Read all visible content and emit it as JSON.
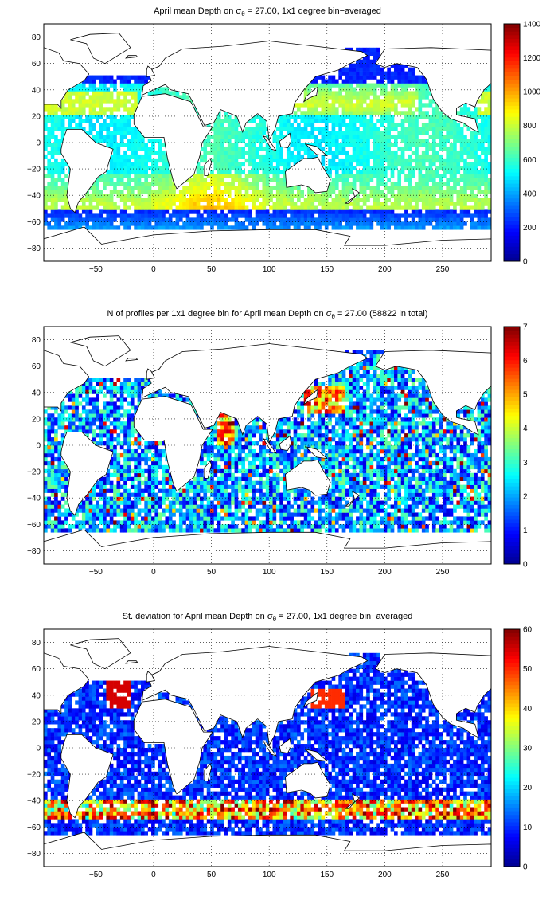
{
  "colormap": [
    "#00008f",
    "#0000ff",
    "#0080ff",
    "#00ffff",
    "#80ff80",
    "#ffff00",
    "#ff8000",
    "#ff0000",
    "#800000"
  ],
  "map_fill": "#ffffff",
  "coastline_color": "#000000",
  "chart_data": [
    {
      "type": "heatmap",
      "title_prefix": "April mean Depth on σ",
      "title_sub": "θ",
      "title_suffix": " = 27.00, 1x1 degree bin−averaged",
      "xlim": [
        -95,
        292
      ],
      "ylim": [
        -90,
        90
      ],
      "xticks": [
        -50,
        0,
        50,
        100,
        150,
        200,
        250
      ],
      "yticks": [
        80,
        60,
        40,
        20,
        0,
        -20,
        -40,
        -60,
        -80
      ],
      "grid": true,
      "colorbar": {
        "min": 0,
        "max": 1400,
        "ticks": [
          1400,
          1200,
          1000,
          800,
          600,
          400,
          200,
          0
        ]
      },
      "field": "depth"
    },
    {
      "type": "heatmap",
      "title_prefix": "N of profiles per 1x1 degree bin for April mean Depth on σ",
      "title_sub": "θ",
      "title_suffix": " = 27.00 (58822 in total)",
      "xlim": [
        -95,
        292
      ],
      "ylim": [
        -90,
        90
      ],
      "xticks": [
        -50,
        0,
        50,
        100,
        150,
        200,
        250
      ],
      "yticks": [
        80,
        60,
        40,
        20,
        0,
        -20,
        -40,
        -60,
        -80
      ],
      "grid": true,
      "colorbar": {
        "min": 0,
        "max": 7,
        "ticks": [
          7,
          6,
          5,
          4,
          3,
          2,
          1,
          0
        ]
      },
      "field": "count"
    },
    {
      "type": "heatmap",
      "title_prefix": "St. deviation for April mean Depth on σ",
      "title_sub": "θ",
      "title_suffix": " = 27.00, 1x1 degree bin−averaged",
      "xlim": [
        -95,
        292
      ],
      "ylim": [
        -90,
        90
      ],
      "xticks": [
        -50,
        0,
        50,
        100,
        150,
        200,
        250
      ],
      "yticks": [
        80,
        60,
        40,
        20,
        0,
        -20,
        -40,
        -60,
        -80
      ],
      "grid": true,
      "colorbar": {
        "min": 0,
        "max": 60,
        "ticks": [
          60,
          50,
          40,
          30,
          20,
          10,
          0
        ]
      },
      "field": "std"
    }
  ]
}
